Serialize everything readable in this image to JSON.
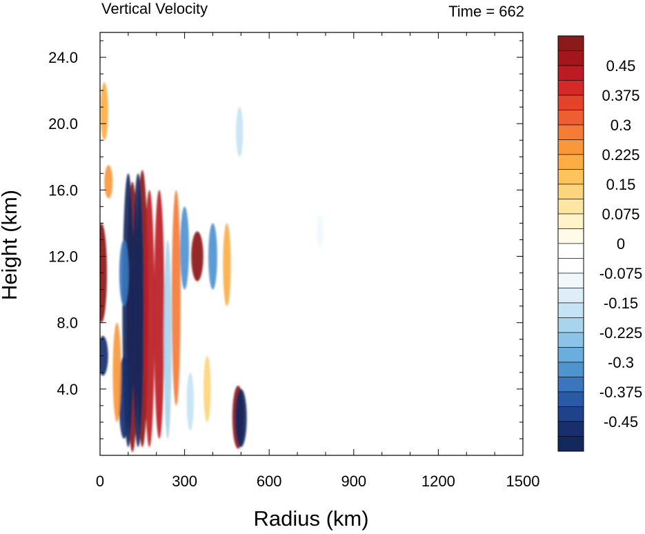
{
  "chart_data": {
    "type": "heatmap",
    "title": "Vertical Velocity",
    "time_label": "Time = 662",
    "xlabel": "Radius (km)",
    "ylabel": "Height (km)",
    "xlim": [
      0,
      1500
    ],
    "ylim": [
      0,
      25.5
    ],
    "x_ticks": [
      "0",
      "300",
      "600",
      "900",
      "1200",
      "1500"
    ],
    "x_tick_values": [
      0,
      300,
      600,
      900,
      1200,
      1500
    ],
    "y_ticks": [
      "4.0",
      "8.0",
      "12.0",
      "16.0",
      "20.0",
      "24.0"
    ],
    "y_tick_values": [
      4,
      8,
      12,
      16,
      20,
      24
    ],
    "colorbar": {
      "min": -0.525,
      "max": 0.525,
      "step": 0.0375,
      "labels": [
        "0.45",
        "0.375",
        "0.3",
        "0.225",
        "0.15",
        "0.075",
        "0",
        "-0.075",
        "-0.15",
        "-0.225",
        "-0.3",
        "-0.375",
        "-0.45"
      ],
      "label_values": [
        0.45,
        0.375,
        0.3,
        0.225,
        0.15,
        0.075,
        0,
        -0.075,
        -0.15,
        -0.225,
        -0.3,
        -0.375,
        -0.45
      ],
      "colors": [
        "#8b1a1a",
        "#a3171c",
        "#bb1b22",
        "#d42a27",
        "#e3432b",
        "#ed5f31",
        "#f37c36",
        "#f9983b",
        "#fcae44",
        "#fdc35c",
        "#fdd57c",
        "#fde6a2",
        "#fef3c9",
        "#fffbe8",
        "#ffffff",
        "#ffffff",
        "#f1f8fc",
        "#ddeef8",
        "#c6e3f3",
        "#a9d4ed",
        "#8bc4e6",
        "#6aaedd",
        "#4f93cf",
        "#3a76bd",
        "#2a5aa6",
        "#1f428a",
        "#172f6c",
        "#13285c"
      ]
    },
    "features": [
      {
        "r": 115,
        "z0": 0.2,
        "z1": 16.5,
        "w": 0.6
      },
      {
        "r": 150,
        "z0": 0.5,
        "z1": 17.2,
        "w": 0.6
      },
      {
        "r": 175,
        "z0": 0.5,
        "z1": 16.0,
        "w": 0.45
      },
      {
        "r": 210,
        "z0": 1.0,
        "z1": 16.0,
        "w": 0.45
      },
      {
        "r": 345,
        "z0": 10.5,
        "z1": 13.5,
        "w": 0.6
      },
      {
        "r": 270,
        "z0": 3.0,
        "z1": 16.0,
        "w": 0.3
      },
      {
        "r": 5,
        "z0": 8.0,
        "z1": 14.0,
        "w": 0.5
      },
      {
        "r": 490,
        "z0": 0.4,
        "z1": 4.2,
        "w": 0.55
      },
      {
        "r": 100,
        "z0": 0.5,
        "z1": 17.0,
        "w": -0.55
      },
      {
        "r": 135,
        "z0": 0.5,
        "z1": 17.0,
        "w": -0.55
      },
      {
        "r": 85,
        "z0": 1.0,
        "z1": 6.0,
        "w": -0.45
      },
      {
        "r": 85,
        "z0": 9.0,
        "z1": 13.0,
        "w": -0.35
      },
      {
        "r": 300,
        "z0": 10.0,
        "z1": 15.0,
        "w": -0.3
      },
      {
        "r": 400,
        "z0": 10.0,
        "z1": 14.0,
        "w": -0.3
      },
      {
        "r": 240,
        "z0": 1.0,
        "z1": 13.0,
        "w": -0.2
      },
      {
        "r": 10,
        "z0": 4.8,
        "z1": 7.2,
        "w": -0.45
      },
      {
        "r": 500,
        "z0": 0.5,
        "z1": 4.0,
        "w": -0.55
      },
      {
        "r": 495,
        "z0": 18.0,
        "z1": 21.0,
        "w": -0.15
      },
      {
        "r": 780,
        "z0": 12.5,
        "z1": 14.5,
        "w": -0.1
      },
      {
        "r": 450,
        "z0": 9.0,
        "z1": 14.0,
        "w": 0.2
      },
      {
        "r": 30,
        "z0": 15.5,
        "z1": 17.5,
        "w": 0.25
      },
      {
        "r": 15,
        "z0": 19.0,
        "z1": 22.5,
        "w": 0.2
      },
      {
        "r": 380,
        "z0": 2.0,
        "z1": 6.0,
        "w": 0.15
      },
      {
        "r": 60,
        "z0": 2.0,
        "z1": 8.0,
        "w": 0.25
      },
      {
        "r": 320,
        "z0": 1.5,
        "z1": 5.0,
        "w": -0.15
      }
    ]
  }
}
